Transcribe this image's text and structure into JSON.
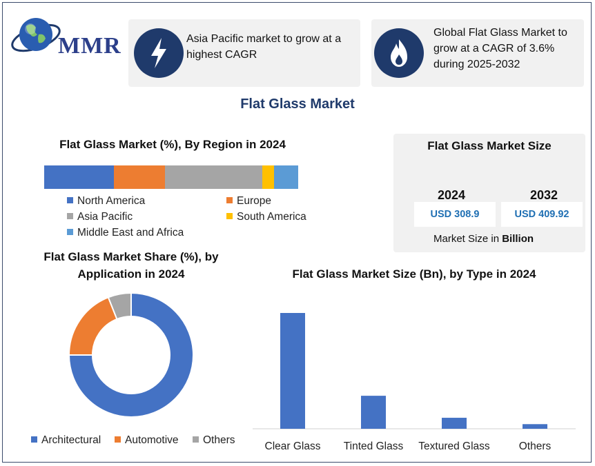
{
  "logo": {
    "text": "MMR",
    "icon": "globe-icon"
  },
  "cards": [
    {
      "icon": "lightning-bolt-icon",
      "line1": "Asia Pacific market to grow at a",
      "line2": "highest CAGR"
    },
    {
      "icon": "flame-icon",
      "line1": "Global Flat Glass Market to",
      "line2": "grow at a CAGR of 3.6%",
      "line3": "during 2025-2032"
    }
  ],
  "main_title": "Flat Glass Market",
  "region": {
    "title": "Flat Glass Market (%), By Region in 2024",
    "legend": [
      "North America",
      "Europe",
      "Asia Pacific",
      "South America",
      "Middle East and Africa"
    ]
  },
  "market_size": {
    "title": "Flat Glass Market Size",
    "year1": "2024",
    "value1": "USD 308.9",
    "year2": "2032",
    "value2": "USD 409.92",
    "note_prefix": "Market Size in ",
    "note_bold": "Billion"
  },
  "application": {
    "title_line1": "Flat Glass Market Share (%), by",
    "title_line2": "Application in 2024",
    "legend": [
      "Architectural",
      "Automotive",
      "Others"
    ]
  },
  "type": {
    "title": "Flat Glass Market Size (Bn), by Type in 2024"
  },
  "colors": {
    "navy": "#1f3a6b",
    "blue": "#4472c4",
    "orange": "#ed7d31",
    "gray": "#a5a5a5",
    "yellow": "#ffc000",
    "lightblue": "#5b9bd5"
  },
  "chart_data": [
    {
      "type": "bar",
      "orientation": "horizontal-stacked",
      "title": "Flat Glass Market (%), By Region in 2024",
      "categories": [
        "2024"
      ],
      "series": [
        {
          "name": "North America",
          "values": [
            27.5
          ]
        },
        {
          "name": "Europe",
          "values": [
            20
          ]
        },
        {
          "name": "Asia Pacific",
          "values": [
            38.5
          ]
        },
        {
          "name": "South America",
          "values": [
            4.5
          ]
        },
        {
          "name": "Middle East and Africa",
          "values": [
            9.5
          ]
        }
      ],
      "xlim": [
        0,
        100
      ]
    },
    {
      "type": "pie",
      "style": "donut",
      "title": "Flat Glass Market Share (%), by Application in 2024",
      "categories": [
        "Architectural",
        "Automotive",
        "Others"
      ],
      "values": [
        75,
        19,
        6
      ],
      "legend": "bottom"
    },
    {
      "type": "bar",
      "title": "Flat Glass Market Size (Bn), by Type in 2024",
      "categories": [
        "Clear Glass",
        "Tinted Glass",
        "Textured Glass",
        "Others"
      ],
      "values": [
        200,
        57,
        19,
        8
      ],
      "ylim": [
        0,
        200
      ]
    }
  ]
}
